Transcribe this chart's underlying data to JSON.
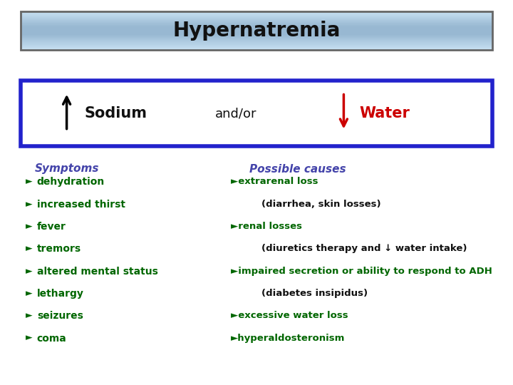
{
  "title": "Hypernatremia",
  "title_border_color": "#666666",
  "sodium_label": "Sodium",
  "andor_label": "and/or",
  "water_label": "Water",
  "box_border_color": "#2222cc",
  "symptoms_header": "Symptoms",
  "symptoms_header_color": "#4444aa",
  "symptoms_items": [
    "dehydration",
    "increased thirst",
    "fever",
    "tremors",
    "altered mental status",
    "lethargy",
    "seizures",
    "coma"
  ],
  "symptoms_color": "#006600",
  "possible_causes_header": "Possible causes",
  "possible_causes_header_color": "#4444aa",
  "possible_causes_items": [
    [
      "►extrarenal loss",
      false
    ],
    [
      "(diarrhea, skin losses)",
      true
    ],
    [
      "►renal losses",
      false
    ],
    [
      "(diuretics therapy and ↓ water intake)",
      true
    ],
    [
      "►impaired secretion or ability to respond to ADH",
      false
    ],
    [
      "(diabetes insipidus)",
      true
    ],
    [
      "►excessive water loss",
      false
    ],
    [
      "►hyperaldosteronism",
      false
    ]
  ],
  "causes_color": "#006600",
  "bg_color": "#ffffff",
  "arrow_up_color": "#000000",
  "arrow_down_color": "#cc0000"
}
